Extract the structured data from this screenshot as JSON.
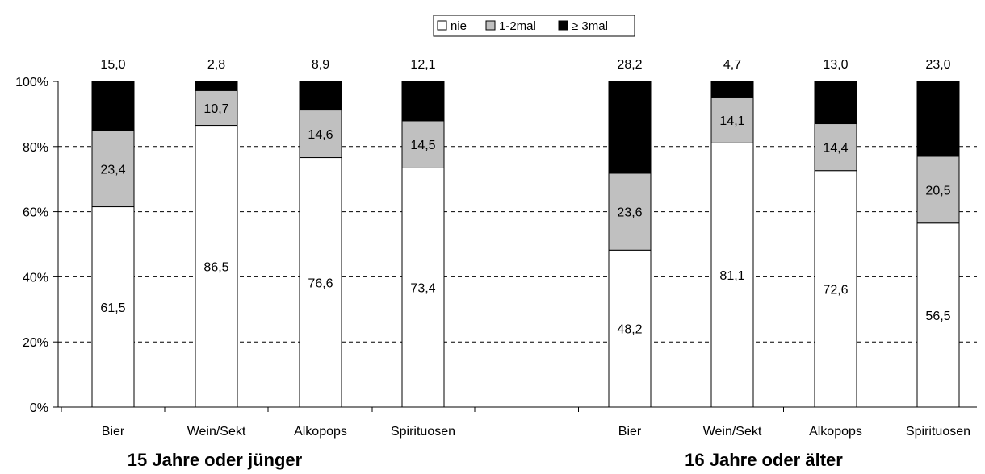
{
  "chart_data": {
    "type": "bar",
    "stacked": true,
    "normalized_percent": true,
    "groups": [
      {
        "title": "15 Jahre oder jünger",
        "categories": [
          "Bier",
          "Wein/Sekt",
          "Alkopops",
          "Spirituosen"
        ],
        "series": [
          {
            "name": "nie",
            "values": [
              61.5,
              86.5,
              76.6,
              73.4
            ],
            "labels": [
              "61,5",
              "86,5",
              "76,6",
              "73,4"
            ]
          },
          {
            "name": "1-2mal",
            "values": [
              23.4,
              10.7,
              14.6,
              14.5
            ],
            "labels": [
              "23,4",
              "10,7",
              "14,6",
              "14,5"
            ]
          },
          {
            "name": "≥ 3mal",
            "values": [
              15.0,
              2.8,
              8.9,
              12.1
            ],
            "labels": [
              "15,0",
              "2,8",
              "8,9",
              "12,1"
            ]
          }
        ]
      },
      {
        "title": "16 Jahre oder älter",
        "categories": [
          "Bier",
          "Wein/Sekt",
          "Alkopops",
          "Spirituosen"
        ],
        "series": [
          {
            "name": "nie",
            "values": [
              48.2,
              81.1,
              72.6,
              56.5
            ],
            "labels": [
              "48,2",
              "81,1",
              "72,6",
              "56,5"
            ]
          },
          {
            "name": "1-2mal",
            "values": [
              23.6,
              14.1,
              14.4,
              20.5
            ],
            "labels": [
              "23,6",
              "14,1",
              "14,4",
              "20,5"
            ]
          },
          {
            "name": "≥ 3mal",
            "values": [
              28.2,
              4.7,
              13.0,
              23.0
            ],
            "labels": [
              "28,2",
              "4,7",
              "13,0",
              "23,0"
            ]
          }
        ]
      }
    ],
    "colors": {
      "nie": "#ffffff",
      "1-2mal": "#c0c0c0",
      "≥ 3mal": "#000000"
    },
    "yticks": [
      "0%",
      "20%",
      "40%",
      "60%",
      "80%",
      "100%"
    ],
    "ylim": [
      0,
      100
    ],
    "grid": "dashed horizontal",
    "legend_position": "top-center",
    "title": "",
    "xlabel": "",
    "ylabel": ""
  }
}
